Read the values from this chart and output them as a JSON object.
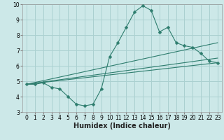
{
  "title": "",
  "xlabel": "Humidex (Indice chaleur)",
  "ylabel": "",
  "background_color": "#cce8e8",
  "grid_color": "#aad0d0",
  "line_color": "#2e7d6e",
  "xlim": [
    -0.5,
    23.5
  ],
  "ylim": [
    3,
    10
  ],
  "yticks": [
    3,
    4,
    5,
    6,
    7,
    8,
    9,
    10
  ],
  "xticks": [
    0,
    1,
    2,
    3,
    4,
    5,
    6,
    7,
    8,
    9,
    10,
    11,
    12,
    13,
    14,
    15,
    16,
    17,
    18,
    19,
    20,
    21,
    22,
    23
  ],
  "series": {
    "main": {
      "x": [
        0,
        1,
        2,
        3,
        4,
        5,
        6,
        7,
        8,
        9,
        10,
        11,
        12,
        13,
        14,
        15,
        16,
        17,
        18,
        19,
        20,
        21,
        22,
        23
      ],
      "y": [
        4.8,
        4.8,
        4.9,
        4.6,
        4.5,
        4.0,
        3.5,
        3.4,
        3.5,
        4.5,
        6.6,
        7.5,
        8.5,
        9.5,
        9.9,
        9.6,
        8.2,
        8.5,
        7.5,
        7.3,
        7.2,
        6.8,
        6.3,
        6.2
      ]
    },
    "linear1": {
      "x": [
        0,
        23
      ],
      "y": [
        4.8,
        7.5
      ]
    },
    "linear2": {
      "x": [
        0,
        23
      ],
      "y": [
        4.8,
        6.5
      ]
    },
    "linear3": {
      "x": [
        0,
        23
      ],
      "y": [
        4.8,
        6.2
      ]
    }
  },
  "tick_fontsize": 5.5,
  "xlabel_fontsize": 7,
  "xlabel_fontweight": "bold",
  "linewidth": 0.8,
  "markersize": 2.5
}
